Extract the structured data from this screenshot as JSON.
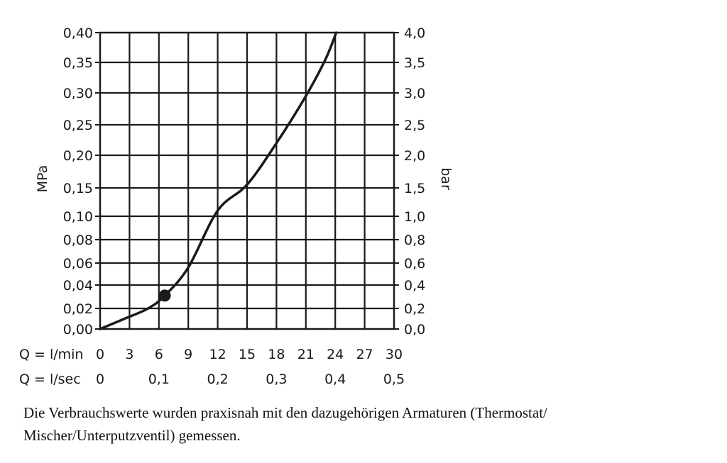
{
  "chart_data": {
    "type": "line",
    "title": "",
    "ylabel_left": "MPa",
    "ylabel_right": "bar",
    "x_rows": [
      {
        "label": "Q = l/min",
        "ticks": [
          "0",
          "3",
          "6",
          "9",
          "12",
          "15",
          "18",
          "21",
          "24",
          "27",
          "30"
        ]
      },
      {
        "label": "Q = l/sec",
        "ticks": [
          "0",
          "0,1",
          "0,2",
          "0,3",
          "0,4",
          "0,5"
        ]
      }
    ],
    "x_unit": "l/min",
    "y_ticks_left": [
      "0,00",
      "0,02",
      "0,04",
      "0,06",
      "0,08",
      "0,10",
      "0,15",
      "0,20",
      "0,25",
      "0,30",
      "0,35",
      "0,40"
    ],
    "y_ticks_right": [
      "0,0",
      "0,2",
      "0,4",
      "0,6",
      "0,8",
      "1,0",
      "1,5",
      "2,0",
      "2,5",
      "3,0",
      "3,5",
      "4,0"
    ],
    "xlim": [
      0,
      30
    ],
    "ylim": [
      0,
      0.4
    ],
    "grid": true,
    "series": [
      {
        "x": [
          0,
          2.5,
          4.9,
          6.6,
          9,
          12,
          15,
          18,
          21,
          23,
          24.1
        ],
        "y": [
          0,
          0.01,
          0.02,
          0.031,
          0.056,
          0.11,
          0.155,
          0.22,
          0.295,
          0.355,
          0.4
        ]
      }
    ],
    "marker": {
      "x": 6.6,
      "y": 0.031
    }
  },
  "caption": "Die Verbrauchswerte wurden praxisnah mit den dazugehörigen Armaturen (Thermostat/ Mischer/Unterputzventil) gemessen.",
  "colors": {
    "ink": "#1a1a1a",
    "background": "#ffffff"
  }
}
